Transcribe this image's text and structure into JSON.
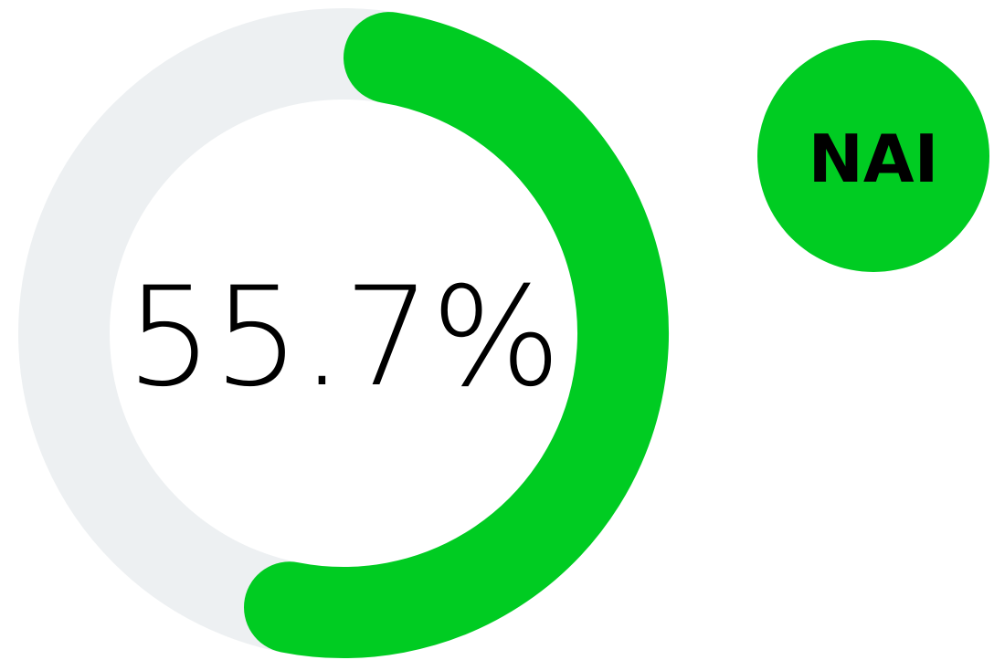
{
  "chart_data": {
    "type": "gauge",
    "label": "NAI",
    "values": [
      55.7
    ],
    "value_labels": [
      "55.7%"
    ],
    "ylim": [
      0,
      100
    ],
    "color": "#00cc22",
    "track_color": "#edf0f2"
  }
}
